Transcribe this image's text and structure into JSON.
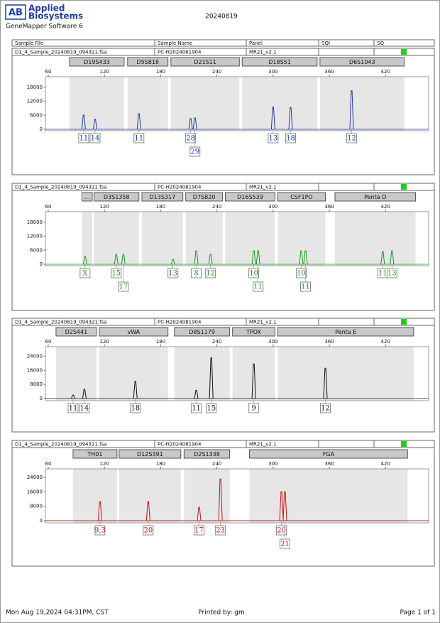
{
  "header": {
    "logo": "AB",
    "brand_lines": [
      "Applied",
      "Biosystems"
    ],
    "software": "GeneMapper Software 6",
    "date": "20240819",
    "columns": [
      "Sample File",
      "Sample Name",
      "Panel",
      "SQI",
      "SQ"
    ]
  },
  "chart_data": [
    {
      "type": "peaks",
      "sample_file": "D1_4_Sample_20240819_094321.fsa",
      "sample_name": "PC-H2024081904",
      "panel": "MR21_v2.1",
      "color": "#1f3aa0",
      "loci": [
        {
          "name": "D19S433",
          "range": [
            82.7,
            141
          ]
        },
        {
          "name": "D5S818",
          "range": [
            144.7,
            187.8
          ]
        },
        {
          "name": "D21S11",
          "range": [
            190.9,
            264
          ]
        },
        {
          "name": "D18S51",
          "range": [
            267,
            347
          ]
        },
        {
          "name": "D6S1043",
          "range": [
            350,
            440
          ]
        }
      ],
      "x": [
        97.8,
        110,
        156.8,
        212,
        216.6,
        300,
        318.7,
        383.8
      ],
      "values": [
        6100,
        4300,
        6700,
        4600,
        4900,
        9500,
        9400,
        16500
      ],
      "alleles": [
        "11",
        "14",
        "11",
        "28",
        "29",
        "13",
        "18",
        "12"
      ],
      "xlim": [
        57,
        466
      ],
      "xticks": [
        60,
        120,
        180,
        240,
        300,
        360,
        420
      ],
      "ylim": [
        -600,
        22500
      ],
      "yticks": [
        0,
        6000,
        12000,
        18000
      ]
    },
    {
      "type": "peaks",
      "sample_file": "D1_4_Sample_20240819_094321.fsa",
      "sample_name": "PC-H2024081904",
      "panel": "MR21_v2.1",
      "color": "#1a9a1a",
      "loci": [
        {
          "name": "...",
          "range": [
            96,
            107
          ]
        },
        {
          "name": "D3S1358",
          "range": [
            109,
            156.8
          ]
        },
        {
          "name": "D13S317",
          "range": [
            160,
            203.7
          ]
        },
        {
          "name": "D7S820",
          "range": [
            206.7,
            246
          ]
        },
        {
          "name": "D16S539",
          "range": [
            249,
            302
          ]
        },
        {
          "name": "CSF1PO",
          "range": [
            305,
            355.8
          ]
        },
        {
          "name": "Penta D",
          "range": [
            366,
            452
          ]
        }
      ],
      "x": [
        99.3,
        132.6,
        140.2,
        193.1,
        218,
        233.2,
        279.4,
        284,
        330,
        334.6,
        417,
        426.9
      ],
      "values": [
        3300,
        4300,
        4300,
        2100,
        5800,
        4300,
        5800,
        5800,
        5800,
        5800,
        5500,
        5800
      ],
      "alleles": [
        "X",
        "15",
        "17",
        "13",
        "8",
        "12",
        "10",
        "11",
        "10",
        "11",
        "11",
        "13"
      ],
      "xlim": [
        57,
        466
      ],
      "xticks": [
        60,
        120,
        180,
        240,
        300,
        360,
        420
      ],
      "ylim": [
        -600,
        22500
      ],
      "yticks": [
        0,
        6000,
        12000,
        18000
      ]
    },
    {
      "type": "peaks",
      "sample_file": "D1_4_Sample_20240819_094321.fsa",
      "sample_name": "PC-H2024081904",
      "panel": "MR21_v2.1",
      "color": "#111111",
      "loci": [
        {
          "name": "D2S441",
          "range": [
            68.3,
            111.4
          ]
        },
        {
          "name": "vWA",
          "range": [
            114.5,
            187.8
          ]
        },
        {
          "name": "D8S1179",
          "range": [
            194.6,
            253.6
          ]
        },
        {
          "name": "TPOX",
          "range": [
            256.7,
            302
          ]
        },
        {
          "name": "Penta E",
          "range": [
            305,
            450
          ]
        }
      ],
      "x": [
        86.5,
        98.6,
        153,
        218,
        234,
        279.4,
        355.8
      ],
      "values": [
        2000,
        5200,
        9800,
        4700,
        23200,
        19700,
        17300
      ],
      "alleles": [
        "11",
        "14",
        "18",
        "11",
        "15",
        "9",
        "12"
      ],
      "xlim": [
        57,
        466
      ],
      "xticks": [
        60,
        120,
        180,
        240,
        300,
        360,
        420
      ],
      "ylim": [
        -1200,
        29500
      ],
      "yticks": [
        0,
        8000,
        16000,
        24000
      ]
    },
    {
      "type": "peaks",
      "sample_file": "D1_4_Sample_20240819_094321.fsa",
      "sample_name": "PC-H2024081904",
      "panel": "MR21_v2.1",
      "color": "#cc1111",
      "loci": [
        {
          "name": "TH01",
          "range": [
            86.5,
            133.4
          ]
        },
        {
          "name": "D12S391",
          "range": [
            135.7,
            201.5
          ]
        },
        {
          "name": "D2S1338",
          "range": [
            205,
            253.6
          ]
        },
        {
          "name": "FGA",
          "range": [
            274.8,
            443.5
          ]
        }
      ],
      "x": [
        115.2,
        166.7,
        221,
        243.8,
        308.9,
        312.6
      ],
      "values": [
        10600,
        10600,
        7500,
        23200,
        16100,
        16100
      ],
      "alleles": [
        "9,3",
        "20",
        "17",
        "23",
        "20",
        "21"
      ],
      "xlim": [
        57,
        466
      ],
      "xticks": [
        60,
        120,
        180,
        240,
        300,
        360,
        420
      ],
      "ylim": [
        -1200,
        28800
      ],
      "yticks": [
        0,
        8000,
        16000,
        24000
      ]
    }
  ],
  "footer": {
    "printed_at": "Mon Aug 19,2024 04:31PM, CST",
    "printed_by": "Printed by: gm",
    "page": "Page 1 of 1"
  }
}
